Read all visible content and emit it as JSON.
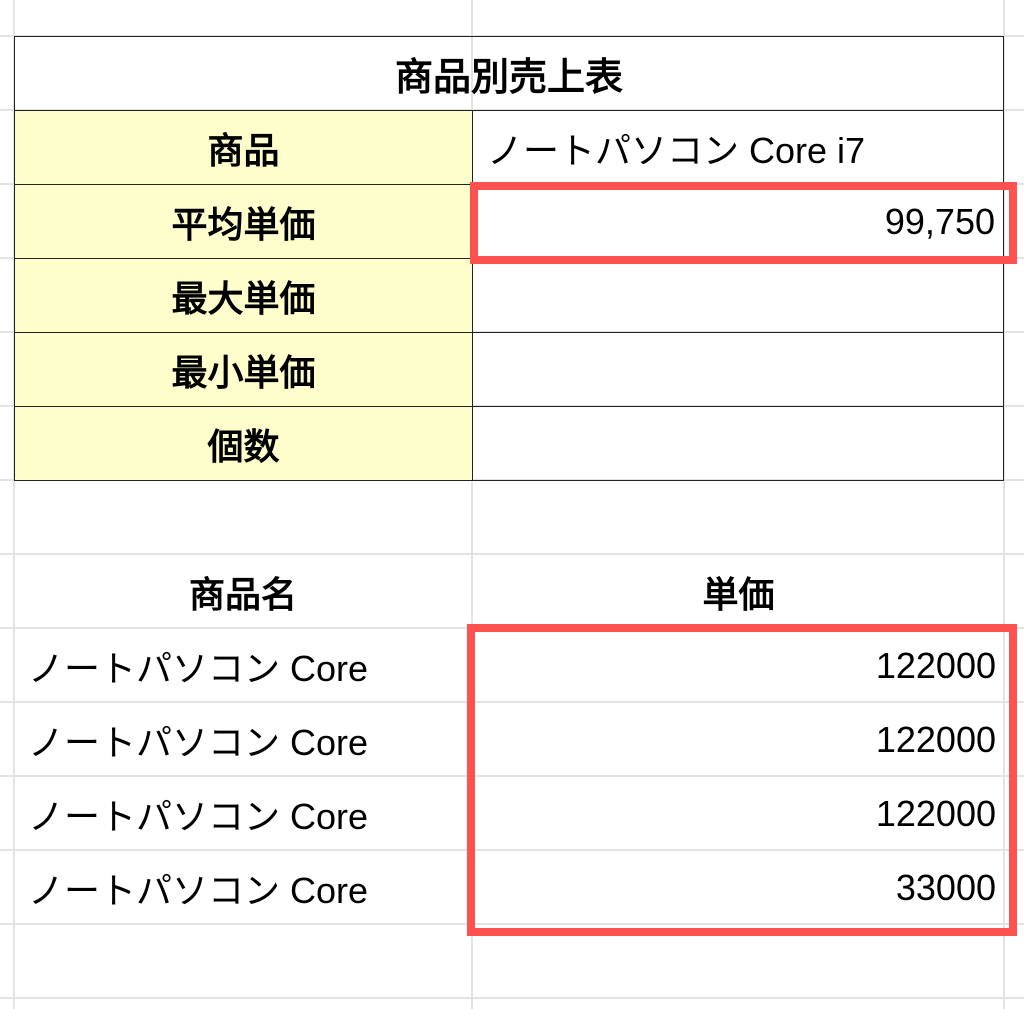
{
  "summary_table": {
    "title": "商品別売上表",
    "rows": [
      {
        "label": "商品",
        "value": "ノートパソコン Core i7"
      },
      {
        "label": "平均単価",
        "value": "99,750"
      },
      {
        "label": "最大単価",
        "value": ""
      },
      {
        "label": "最小単価",
        "value": ""
      },
      {
        "label": "個数",
        "value": ""
      }
    ],
    "label_fill_color": "#fefecd"
  },
  "data_table": {
    "headers": [
      "商品名",
      "単価"
    ],
    "rows": [
      {
        "name": "ノートパソコン Core",
        "price": "122000"
      },
      {
        "name": "ノートパソコン Core",
        "price": "122000"
      },
      {
        "name": "ノートパソコン Core",
        "price": "122000"
      },
      {
        "name": "ノートパソコン Core",
        "price": "33000"
      }
    ]
  },
  "highlight_color": "#fe5150"
}
